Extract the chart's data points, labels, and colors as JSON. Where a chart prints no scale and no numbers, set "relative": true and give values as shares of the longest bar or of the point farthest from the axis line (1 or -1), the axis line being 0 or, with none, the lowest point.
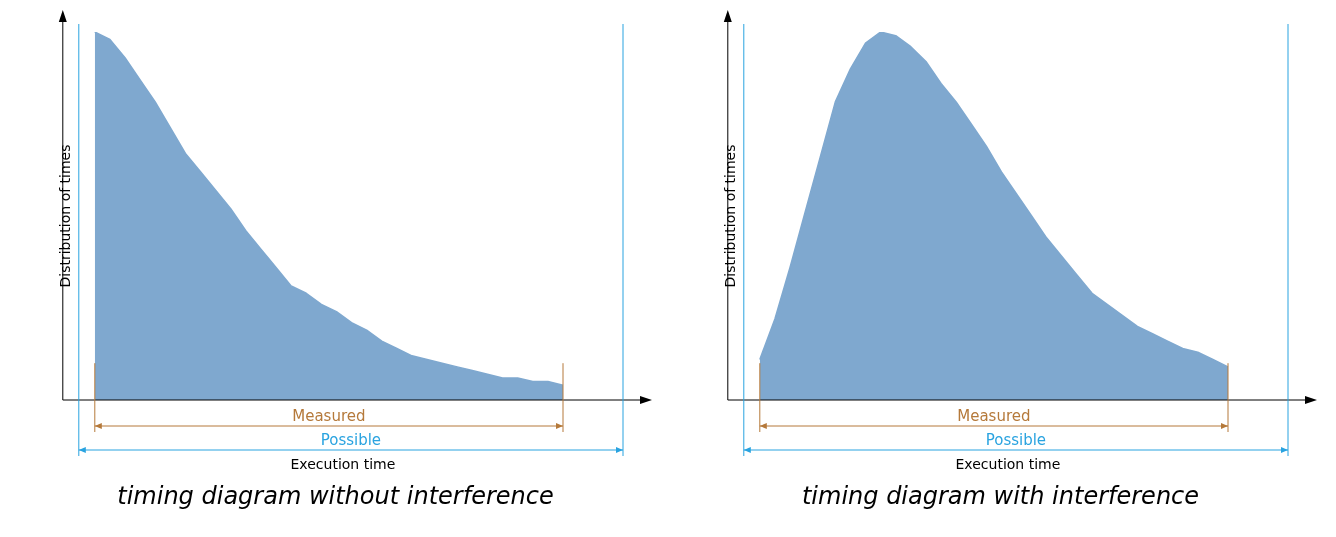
{
  "chart_data": [
    {
      "type": "area",
      "relative": true,
      "title": "timing diagram without interference",
      "xlabel": "Execution time",
      "ylabel": "Distribution of times",
      "annotations": [
        "Measured",
        "Possible"
      ],
      "grid": false,
      "legend": false,
      "categories": [
        null,
        null,
        null,
        null,
        null,
        null,
        null,
        null,
        null,
        null,
        null,
        null,
        null,
        null,
        null,
        null,
        null,
        null,
        null,
        null,
        null,
        null,
        null,
        null,
        null,
        null,
        null,
        null,
        null,
        null,
        null,
        null
      ],
      "series": [
        {
          "color": "#7fa8cf",
          "values": [
            1.0,
            0.98,
            0.93,
            0.87,
            0.81,
            0.74,
            0.67,
            0.62,
            0.57,
            0.52,
            0.46,
            0.41,
            0.36,
            0.31,
            0.29,
            0.26,
            0.24,
            0.21,
            0.19,
            0.16,
            0.14,
            0.12,
            0.11,
            0.1,
            0.09,
            0.08,
            0.07,
            0.06,
            0.06,
            0.05,
            0.05,
            0.04
          ]
        }
      ]
    },
    {
      "type": "area",
      "relative": true,
      "title": "timing diagram with interference",
      "xlabel": "Execution time",
      "ylabel": "Distribution of times",
      "annotations": [
        "Measured",
        "Possible"
      ],
      "grid": false,
      "legend": false,
      "categories": [
        null,
        null,
        null,
        null,
        null,
        null,
        null,
        null,
        null,
        null,
        null,
        null,
        null,
        null,
        null,
        null,
        null,
        null,
        null,
        null,
        null,
        null,
        null,
        null,
        null,
        null,
        null,
        null,
        null,
        null,
        null,
        null
      ],
      "series": [
        {
          "color": "#7fa8cf",
          "values": [
            0.11,
            0.22,
            0.36,
            0.51,
            0.66,
            0.81,
            0.9,
            0.97,
            1.0,
            0.99,
            0.96,
            0.92,
            0.86,
            0.81,
            0.75,
            0.69,
            0.62,
            0.56,
            0.5,
            0.44,
            0.39,
            0.34,
            0.29,
            0.26,
            0.23,
            0.2,
            0.18,
            0.16,
            0.14,
            0.13,
            0.11,
            0.09
          ]
        }
      ]
    }
  ]
}
